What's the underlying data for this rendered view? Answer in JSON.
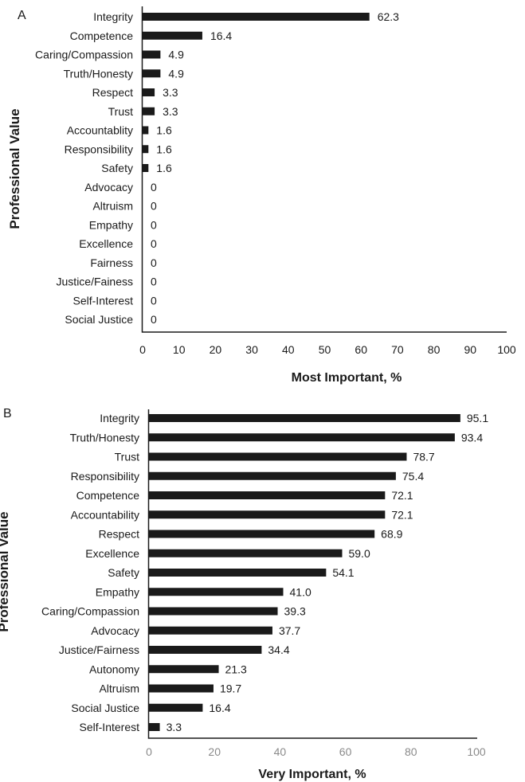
{
  "chart_data": [
    {
      "panel": "A",
      "type": "bar",
      "orientation": "horizontal",
      "categories": [
        "Integrity",
        "Competence",
        "Caring/Compassion",
        "Truth/Honesty",
        "Respect",
        "Trust",
        "Accountablity",
        "Responsibility",
        "Safety",
        "Advocacy",
        "Altruism",
        "Empathy",
        "Excellence",
        "Fairness",
        "Justice/Fainess",
        "Self-Interest",
        "Social Justice"
      ],
      "values": [
        62.3,
        16.4,
        4.9,
        4.9,
        3.3,
        3.3,
        1.6,
        1.6,
        1.6,
        0,
        0,
        0,
        0,
        0,
        0,
        0,
        0
      ],
      "value_labels": [
        "62.3",
        "16.4",
        "4.9",
        "4.9",
        "3.3",
        "3.3",
        "1.6",
        "1.6",
        "1.6",
        "0",
        "0",
        "0",
        "0",
        "0",
        "0",
        "0",
        "0"
      ],
      "xlabel": "Most Important, %",
      "ylabel": "Professional Value",
      "xlim": [
        0,
        100
      ],
      "xticks": [
        0,
        10,
        20,
        30,
        40,
        50,
        60,
        70,
        80,
        90,
        100
      ],
      "grid": false,
      "bar_color": "#1a1a1a"
    },
    {
      "panel": "B",
      "type": "bar",
      "orientation": "horizontal",
      "categories": [
        "Integrity",
        "Truth/Honesty",
        "Trust",
        "Responsibility",
        "Competence",
        "Accountability",
        "Respect",
        "Excellence",
        "Safety",
        "Empathy",
        "Caring/Compassion",
        "Advocacy",
        "Justice/Fairness",
        "Autonomy",
        "Altruism",
        "Social Justice",
        "Self-Interest"
      ],
      "values": [
        95.1,
        93.4,
        78.7,
        75.4,
        72.1,
        72.1,
        68.9,
        59.0,
        54.1,
        41.0,
        39.3,
        37.7,
        34.4,
        21.3,
        19.7,
        16.4,
        3.3
      ],
      "value_labels": [
        "95.1",
        "93.4",
        "78.7",
        "75.4",
        "72.1",
        "72.1",
        "68.9",
        "59.0",
        "54.1",
        "41.0",
        "39.3",
        "37.7",
        "34.4",
        "21.3",
        "19.7",
        "16.4",
        "3.3"
      ],
      "xlabel": "Very Important, %",
      "ylabel": "Professional Value",
      "xlim": [
        0,
        100
      ],
      "xticks": [
        0,
        20,
        40,
        60,
        80,
        100
      ],
      "grid": false,
      "bar_color": "#1a1a1a"
    }
  ]
}
